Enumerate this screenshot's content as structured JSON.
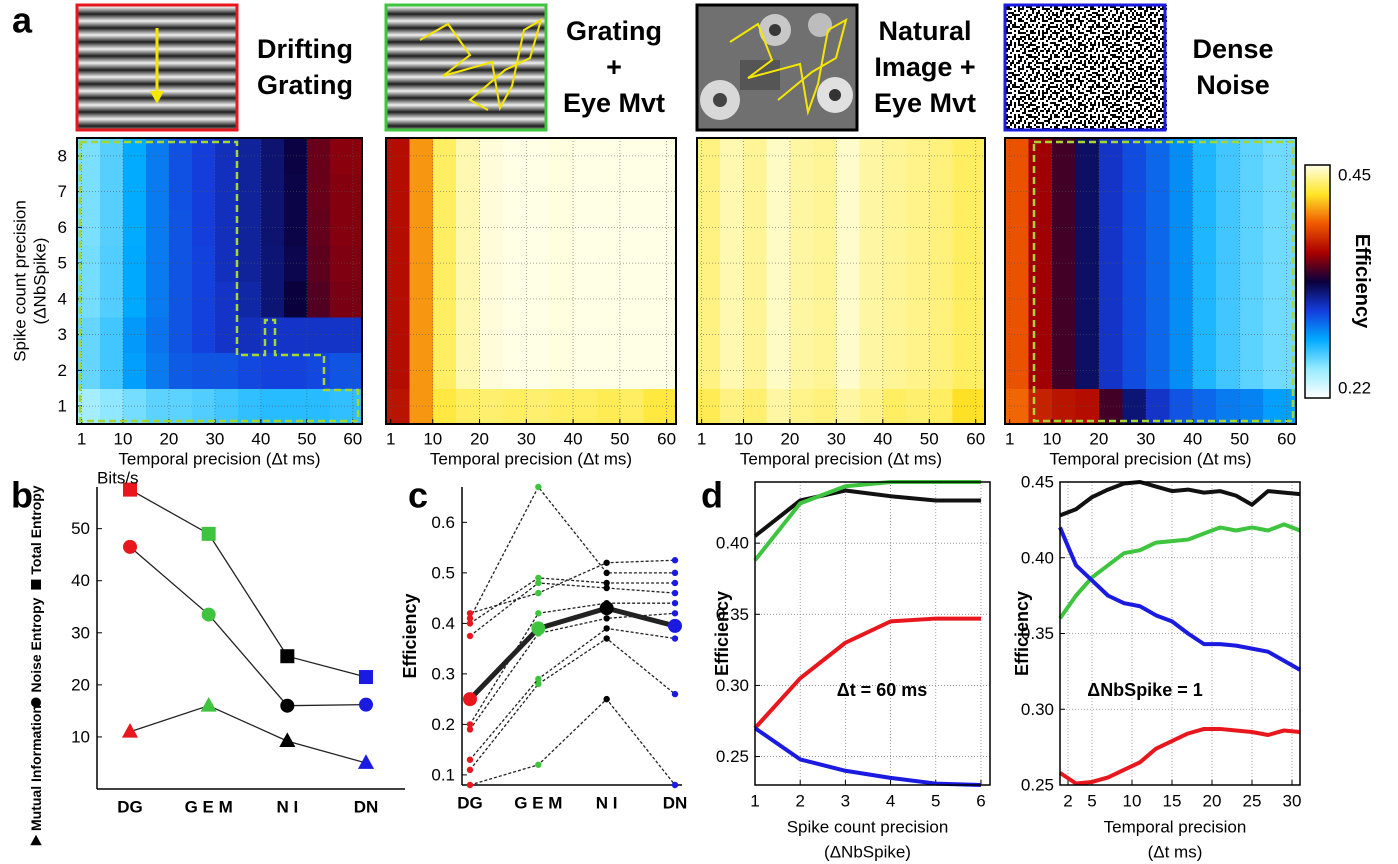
{
  "chart_data": [
    {
      "type": "heatmap",
      "panel": "a",
      "stimulus": {
        "label": [
          "Drifting",
          "Grating"
        ],
        "color": "#e8171d"
      },
      "xlabel": "Temporal precision (Δt ms)",
      "ylabel": [
        "Spike count precision",
        "(ΔNbSpike)"
      ],
      "xlim": [
        0,
        62
      ],
      "ylim": [
        0.5,
        8.5
      ],
      "x_bins": [
        0,
        5,
        10,
        15,
        20,
        25,
        30,
        35,
        40,
        45,
        50,
        55,
        62
      ],
      "y_bins": [
        0.5,
        1.5,
        2.5,
        3.5,
        4.5,
        5.5,
        6.5,
        7.5,
        8.5
      ],
      "xticks": [
        1,
        10,
        20,
        30,
        40,
        50,
        60
      ],
      "yticks": [
        1,
        2,
        3,
        4,
        5,
        6,
        7,
        8
      ],
      "show_ytick_labels": true,
      "grid": true,
      "values": [
        [
          0.245,
          0.25,
          0.255,
          0.26,
          0.26,
          0.262,
          0.265,
          0.268,
          0.27,
          0.27,
          0.27,
          0.268
        ],
        [
          0.258,
          0.265,
          0.28,
          0.29,
          0.298,
          0.3,
          0.3,
          0.303,
          0.305,
          0.305,
          0.303,
          0.3
        ],
        [
          0.258,
          0.265,
          0.282,
          0.292,
          0.3,
          0.305,
          0.31,
          0.312,
          0.31,
          0.31,
          0.31,
          0.31
        ],
        [
          0.255,
          0.262,
          0.278,
          0.29,
          0.3,
          0.305,
          0.31,
          0.316,
          0.325,
          0.335,
          0.348,
          0.355
        ],
        [
          0.255,
          0.262,
          0.278,
          0.29,
          0.3,
          0.305,
          0.312,
          0.318,
          0.325,
          0.332,
          0.35,
          0.356
        ],
        [
          0.254,
          0.261,
          0.277,
          0.29,
          0.3,
          0.306,
          0.312,
          0.318,
          0.326,
          0.333,
          0.351,
          0.357
        ],
        [
          0.254,
          0.261,
          0.277,
          0.29,
          0.301,
          0.306,
          0.312,
          0.318,
          0.326,
          0.333,
          0.352,
          0.357
        ],
        [
          0.254,
          0.261,
          0.277,
          0.29,
          0.301,
          0.306,
          0.312,
          0.318,
          0.326,
          0.334,
          0.352,
          0.358
        ]
      ]
    },
    {
      "type": "heatmap",
      "stimulus": {
        "label": [
          "Grating",
          "+",
          "Eye Mvt"
        ],
        "color": "#3ec43e"
      },
      "xlabel": "Temporal precision (Δt ms)",
      "xlim": [
        0,
        62
      ],
      "ylim": [
        0.5,
        8.5
      ],
      "x_bins": [
        0,
        5,
        10,
        15,
        20,
        25,
        30,
        35,
        40,
        45,
        50,
        55,
        62
      ],
      "y_bins": [
        0.5,
        1.5,
        2.5,
        3.5,
        4.5,
        5.5,
        6.5,
        7.5,
        8.5
      ],
      "xticks": [
        1,
        10,
        20,
        30,
        40,
        50,
        60
      ],
      "yticks": [
        1,
        2,
        3,
        4,
        5,
        6,
        7,
        8
      ],
      "show_ytick_labels": false,
      "grid": true,
      "values": [
        [
          0.37,
          0.405,
          0.425,
          0.43,
          0.432,
          0.43,
          0.432,
          0.43,
          0.43,
          0.428,
          0.43,
          0.425
        ],
        [
          0.368,
          0.405,
          0.43,
          0.442,
          0.448,
          0.45,
          0.45,
          0.449,
          0.45,
          0.45,
          0.45,
          0.45
        ],
        [
          0.368,
          0.405,
          0.43,
          0.442,
          0.448,
          0.45,
          0.45,
          0.449,
          0.45,
          0.45,
          0.45,
          0.45
        ],
        [
          0.368,
          0.405,
          0.43,
          0.442,
          0.448,
          0.45,
          0.45,
          0.449,
          0.45,
          0.45,
          0.45,
          0.45
        ],
        [
          0.368,
          0.405,
          0.43,
          0.442,
          0.448,
          0.45,
          0.45,
          0.449,
          0.45,
          0.45,
          0.45,
          0.45
        ],
        [
          0.368,
          0.405,
          0.43,
          0.442,
          0.448,
          0.45,
          0.45,
          0.449,
          0.45,
          0.45,
          0.45,
          0.45
        ],
        [
          0.368,
          0.405,
          0.43,
          0.442,
          0.448,
          0.45,
          0.45,
          0.449,
          0.45,
          0.45,
          0.45,
          0.45
        ],
        [
          0.368,
          0.405,
          0.43,
          0.442,
          0.448,
          0.45,
          0.45,
          0.449,
          0.45,
          0.45,
          0.45,
          0.45
        ]
      ]
    },
    {
      "type": "heatmap",
      "stimulus": {
        "label": [
          "Natural",
          "Image +",
          "Eye Mvt"
        ],
        "color": "#000000"
      },
      "xlabel": "Temporal precision (Δt ms)",
      "xlim": [
        0,
        62
      ],
      "ylim": [
        0.5,
        8.5
      ],
      "x_bins": [
        0,
        5,
        10,
        15,
        20,
        25,
        30,
        35,
        40,
        45,
        50,
        55,
        62
      ],
      "y_bins": [
        0.5,
        1.5,
        2.5,
        3.5,
        4.5,
        5.5,
        6.5,
        7.5,
        8.5
      ],
      "xticks": [
        1,
        10,
        20,
        30,
        40,
        50,
        60
      ],
      "yticks": [
        1,
        2,
        3,
        4,
        5,
        6,
        7,
        8
      ],
      "show_ytick_labels": false,
      "grid": true,
      "values": [
        [
          0.428,
          0.435,
          0.432,
          0.44,
          0.436,
          0.434,
          0.44,
          0.436,
          0.43,
          0.432,
          0.43,
          0.42
        ],
        [
          0.435,
          0.442,
          0.438,
          0.445,
          0.44,
          0.438,
          0.446,
          0.44,
          0.438,
          0.436,
          0.434,
          0.43
        ],
        [
          0.435,
          0.442,
          0.438,
          0.445,
          0.44,
          0.438,
          0.446,
          0.44,
          0.438,
          0.436,
          0.434,
          0.43
        ],
        [
          0.435,
          0.442,
          0.438,
          0.445,
          0.44,
          0.438,
          0.446,
          0.44,
          0.438,
          0.436,
          0.434,
          0.43
        ],
        [
          0.435,
          0.442,
          0.438,
          0.445,
          0.44,
          0.438,
          0.446,
          0.44,
          0.438,
          0.436,
          0.434,
          0.43
        ],
        [
          0.435,
          0.442,
          0.438,
          0.445,
          0.44,
          0.438,
          0.446,
          0.44,
          0.438,
          0.436,
          0.434,
          0.43
        ],
        [
          0.435,
          0.442,
          0.438,
          0.445,
          0.44,
          0.438,
          0.446,
          0.44,
          0.438,
          0.436,
          0.434,
          0.43
        ],
        [
          0.435,
          0.442,
          0.438,
          0.445,
          0.44,
          0.438,
          0.446,
          0.44,
          0.438,
          0.436,
          0.434,
          0.43
        ]
      ]
    },
    {
      "type": "heatmap",
      "stimulus": {
        "label": [
          "Dense",
          "Noise"
        ],
        "color": "#1a1ae0"
      },
      "xlabel": "Temporal precision (Δt ms)",
      "xlim": [
        0,
        62
      ],
      "ylim": [
        0.5,
        8.5
      ],
      "x_bins": [
        0,
        5,
        10,
        15,
        20,
        25,
        30,
        35,
        40,
        45,
        50,
        55,
        62
      ],
      "y_bins": [
        0.5,
        1.5,
        2.5,
        3.5,
        4.5,
        5.5,
        6.5,
        7.5,
        8.5
      ],
      "xticks": [
        1,
        10,
        20,
        30,
        40,
        50,
        60
      ],
      "yticks": [
        1,
        2,
        3,
        4,
        5,
        6,
        7,
        8
      ],
      "show_ytick_labels": false,
      "grid": true,
      "values": [
        [
          0.395,
          0.375,
          0.37,
          0.368,
          0.345,
          0.325,
          0.31,
          0.3,
          0.295,
          0.29,
          0.288,
          0.28
        ],
        [
          0.39,
          0.362,
          0.345,
          0.328,
          0.31,
          0.302,
          0.295,
          0.285,
          0.272,
          0.265,
          0.26,
          0.256
        ],
        [
          0.39,
          0.362,
          0.345,
          0.328,
          0.31,
          0.302,
          0.295,
          0.285,
          0.272,
          0.265,
          0.26,
          0.256
        ],
        [
          0.39,
          0.362,
          0.345,
          0.328,
          0.31,
          0.302,
          0.295,
          0.285,
          0.272,
          0.265,
          0.26,
          0.256
        ],
        [
          0.39,
          0.362,
          0.345,
          0.328,
          0.31,
          0.302,
          0.295,
          0.285,
          0.272,
          0.265,
          0.26,
          0.256
        ],
        [
          0.39,
          0.362,
          0.345,
          0.328,
          0.31,
          0.302,
          0.295,
          0.285,
          0.272,
          0.265,
          0.26,
          0.256
        ],
        [
          0.39,
          0.362,
          0.345,
          0.328,
          0.31,
          0.302,
          0.295,
          0.285,
          0.272,
          0.265,
          0.26,
          0.256
        ],
        [
          0.39,
          0.362,
          0.345,
          0.328,
          0.31,
          0.302,
          0.295,
          0.285,
          0.272,
          0.265,
          0.26,
          0.256
        ]
      ]
    },
    {
      "type": "line",
      "panel": "b",
      "ylabel": "Bits/s",
      "categories": [
        "DG",
        "G E M",
        "N I",
        "DN"
      ],
      "category_colors": [
        "#e8171d",
        "#3ec43e",
        "#000000",
        "#1a1ae0"
      ],
      "ylim": [
        0,
        58
      ],
      "yticks": [
        10,
        20,
        30,
        40,
        50
      ],
      "legend": "left",
      "series": [
        {
          "name": "Total Entropy",
          "marker": "square",
          "values": [
            57.5,
            49,
            25.5,
            21.5
          ]
        },
        {
          "name": "Noise Entropy",
          "marker": "circle",
          "values": [
            46.5,
            33.5,
            16,
            16.2
          ]
        },
        {
          "name": "Mutual Information",
          "marker": "triangle",
          "values": [
            11,
            16,
            9.2,
            5
          ]
        }
      ]
    },
    {
      "type": "line",
      "panel": "c",
      "ylabel": "Efficiency",
      "categories": [
        "DG",
        "G E M",
        "N I",
        "DN"
      ],
      "category_colors": [
        "#e8171d",
        "#3ec43e",
        "#000000",
        "#1a1ae0"
      ],
      "ylim": [
        0.08,
        0.67
      ],
      "yticks": [
        0.1,
        0.2,
        0.3,
        0.4,
        0.5,
        0.6
      ],
      "series": [
        {
          "linestyle": "dotted",
          "values": [
            0.08,
            0.12,
            0.25,
            0.08
          ]
        },
        {
          "linestyle": "dotted",
          "values": [
            0.11,
            0.28,
            0.37,
            0.26
          ]
        },
        {
          "linestyle": "dotted",
          "values": [
            0.13,
            0.29,
            0.39,
            0.37
          ]
        },
        {
          "linestyle": "dotted",
          "values": [
            0.19,
            0.38,
            0.41,
            0.42
          ]
        },
        {
          "linestyle": "dotted",
          "values": [
            0.2,
            0.42,
            0.44,
            0.44
          ]
        },
        {
          "linestyle": "dotted",
          "values": [
            0.375,
            0.48,
            0.47,
            0.46
          ]
        },
        {
          "linestyle": "dotted",
          "values": [
            0.4,
            0.49,
            0.48,
            0.48
          ]
        },
        {
          "linestyle": "dotted",
          "values": [
            0.41,
            0.67,
            0.5,
            0.5
          ]
        },
        {
          "linestyle": "dotted",
          "values": [
            0.42,
            0.46,
            0.52,
            0.525
          ]
        },
        {
          "linestyle": "solid",
          "values": [
            0.25,
            0.39,
            0.43,
            0.395
          ]
        }
      ]
    },
    {
      "type": "line",
      "panel": "d",
      "ylabel": "Efficiency",
      "xlabel": [
        "Spike count precision",
        "(ΔNbSpike)"
      ],
      "annotation": "Δt = 60 ms",
      "x": [
        1,
        2,
        3,
        4,
        5,
        6
      ],
      "xlim": [
        1,
        6.2
      ],
      "ylim": [
        0.23,
        0.443
      ],
      "xticks": [
        1,
        2,
        3,
        4,
        5,
        6
      ],
      "yticks": [
        0.25,
        {
          "value": 0.3,
          "label": "0.30"
        },
        0.35,
        {
          "value": 0.4,
          "label": "0.40"
        }
      ],
      "grid": true,
      "series": [
        {
          "color": "#111111",
          "values": [
            0.405,
            0.43,
            0.437,
            0.433,
            0.43,
            0.43
          ]
        },
        {
          "color": "#3ec43e",
          "values": [
            0.388,
            0.428,
            0.44,
            0.443,
            0.443,
            0.443
          ]
        },
        {
          "color": "#e8171d",
          "values": [
            0.27,
            0.305,
            0.33,
            0.345,
            0.347,
            0.347
          ]
        },
        {
          "color": "#1a1ae0",
          "values": [
            0.27,
            0.248,
            0.24,
            0.235,
            0.231,
            0.23
          ]
        }
      ]
    },
    {
      "type": "line",
      "ylabel": "Efficiency",
      "xlabel": [
        "Temporal precision",
        "(Δt ms)"
      ],
      "annotation": "ΔNbSpike = 1",
      "x": [
        1,
        3,
        5,
        7,
        9,
        11,
        13,
        15,
        17,
        19,
        21,
        23,
        25,
        27,
        29,
        31
      ],
      "xlim": [
        1,
        31
      ],
      "ylim": [
        0.25,
        0.45
      ],
      "xticks": [
        2,
        5,
        10,
        15,
        20,
        25,
        30
      ],
      "yticks": [
        0.25,
        {
          "value": 0.3,
          "label": "0.30"
        },
        0.35,
        {
          "value": 0.4,
          "label": "0.40"
        },
        0.45
      ],
      "grid": true,
      "series": [
        {
          "color": "#111111",
          "values": [
            0.428,
            0.432,
            0.44,
            0.445,
            0.449,
            0.45,
            0.447,
            0.444,
            0.445,
            0.443,
            0.444,
            0.441,
            0.435,
            0.444,
            0.443,
            0.442
          ]
        },
        {
          "color": "#3ec43e",
          "values": [
            0.36,
            0.375,
            0.387,
            0.395,
            0.403,
            0.405,
            0.41,
            0.411,
            0.412,
            0.416,
            0.42,
            0.418,
            0.42,
            0.418,
            0.422,
            0.418
          ]
        },
        {
          "color": "#1a1ae0",
          "values": [
            0.42,
            0.395,
            0.385,
            0.375,
            0.37,
            0.368,
            0.362,
            0.358,
            0.35,
            0.343,
            0.343,
            0.342,
            0.34,
            0.338,
            0.332,
            0.326
          ]
        },
        {
          "color": "#e8171d",
          "values": [
            0.258,
            0.251,
            0.252,
            0.255,
            0.26,
            0.265,
            0.274,
            0.279,
            0.284,
            0.287,
            0.287,
            0.286,
            0.285,
            0.283,
            0.286,
            0.285
          ]
        }
      ]
    }
  ],
  "colorbar": {
    "label": "Efficiency",
    "clim": [
      0.22,
      0.45
    ],
    "ticks": [
      0.22,
      0.45
    ],
    "colormap": [
      "#ffffff",
      "#96ebff",
      "#00aaff",
      "#143cdc",
      "#0a003c",
      "#aa0000",
      "#f05a00",
      "#ffe628",
      "#ffffe6"
    ]
  }
}
